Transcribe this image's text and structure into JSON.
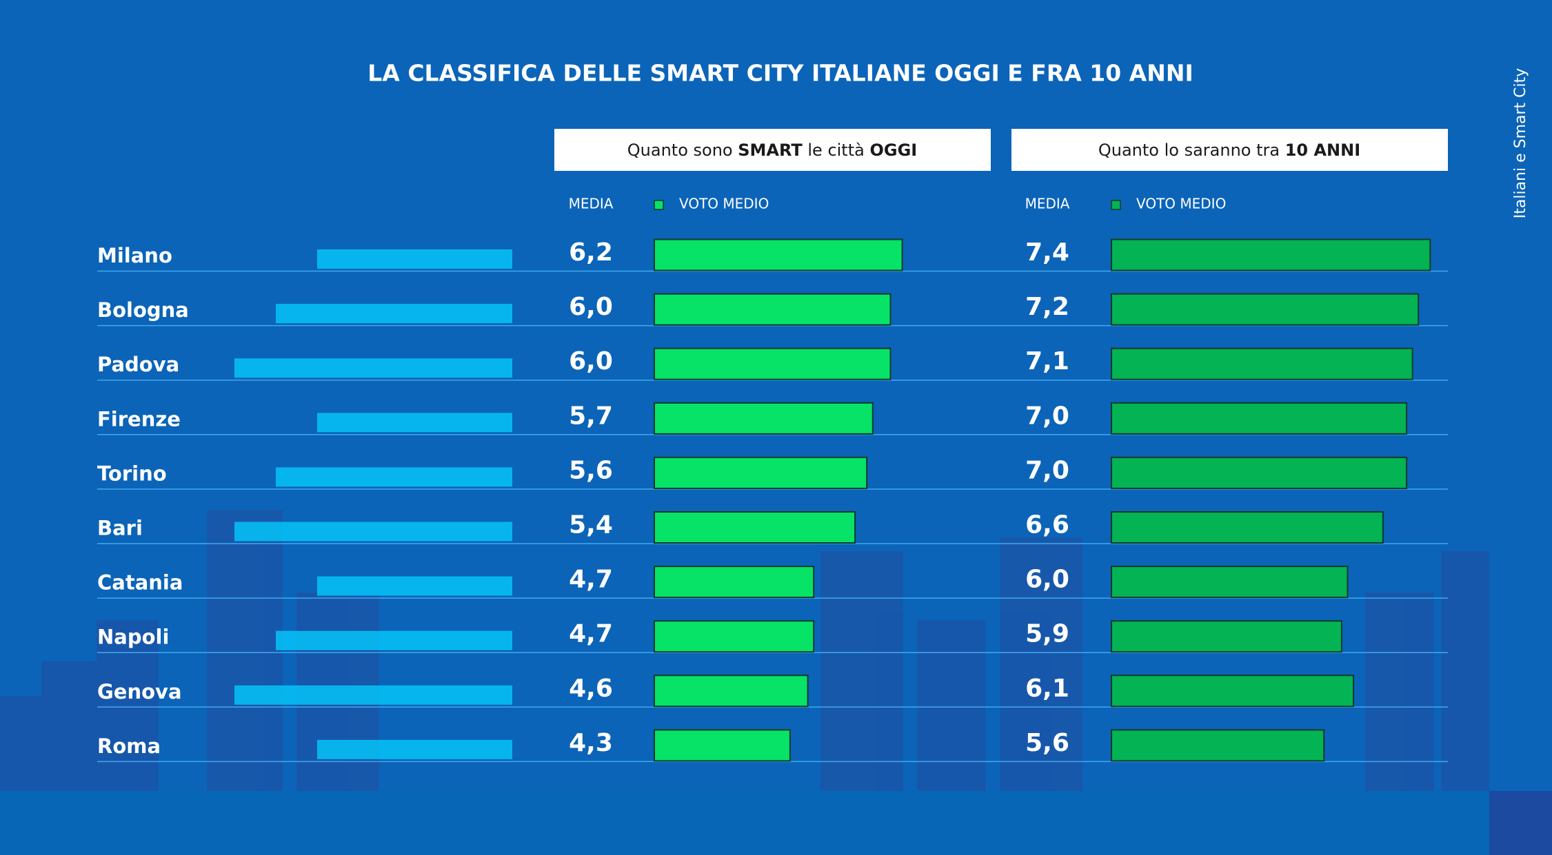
{
  "title": "LA CLASSIFICA DELLE SMART CITY ITALIANE OGGI E FRA 10 ANNI",
  "side_note": "Italiani e Smart City",
  "chart_data": [
    {
      "type": "bar",
      "orientation": "horizontal",
      "title_parts": [
        "Quanto sono ",
        "SMART",
        " le città ",
        "OGGI"
      ],
      "value_header": "MEDIA",
      "categories": [
        "Milano",
        "Bologna",
        "Padova",
        "Firenze",
        "Torino",
        "Bari",
        "Catania",
        "Napoli",
        "Genova",
        "Roma"
      ],
      "xlim": [
        2,
        7.7
      ],
      "series": [
        {
          "name": "VOTO MEDIO",
          "color": "#06e367",
          "values": [
            6.2,
            6.0,
            6.0,
            5.7,
            5.6,
            5.4,
            4.7,
            4.7,
            4.6,
            4.3
          ],
          "value_labels": [
            "6,2",
            "6,0",
            "6,0",
            "5,7",
            "5,6",
            "5,4",
            "4,7",
            "4,7",
            "4,6",
            "4,3"
          ]
        }
      ]
    },
    {
      "type": "bar",
      "orientation": "horizontal",
      "title_parts": [
        "Quanto lo saranno tra ",
        "10 ANNI"
      ],
      "value_header": "MEDIA",
      "xlim": [
        2,
        7.7
      ],
      "series": [
        {
          "name": "VOTO MEDIO",
          "color": "#03b354",
          "values": [
            7.4,
            7.2,
            7.1,
            7.0,
            7.0,
            6.6,
            6.0,
            5.9,
            6.1,
            5.6
          ],
          "value_labels": [
            "7,4",
            "7,2",
            "7,1",
            "7,0",
            "7,0",
            "6,6",
            "6,0",
            "5,9",
            "6,1",
            "5,6"
          ]
        }
      ]
    }
  ]
}
